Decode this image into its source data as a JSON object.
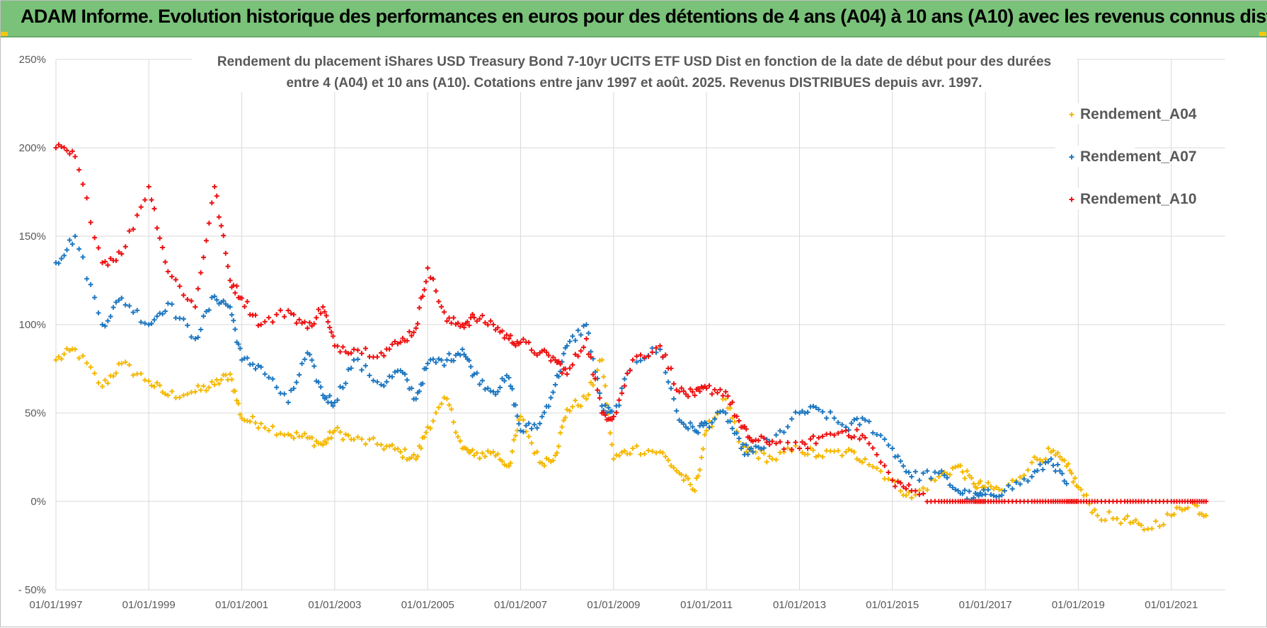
{
  "header": {
    "banner_title": "ADAM Informe. Evolution historique des performances en euros pour des détentions de 4 ans (A04) à 10 ans (A10) avec les revenus connus distribués"
  },
  "colors": {
    "banner_bg": "#7ac27a",
    "series_A04": "#f5b800",
    "series_A07": "#1f78c1",
    "series_A10": "#ee1111",
    "grid": "#d9d9d9",
    "axis_text": "#595959"
  },
  "chart_data": {
    "type": "scatter",
    "title_lines": [
      "Rendement du placement iShares USD Treasury Bond 7-10yr UCITS ETF USD Dist en fonction de la date de début pour des durées",
      "entre 4 (A04) et 10 ans (A10).  Cotations entre janv 1997 et août. 2025. Revenus DISTRIBUES depuis avr. 1997."
    ],
    "xlabel": "",
    "ylabel": "",
    "x_ticks": [
      "01/01/1997",
      "01/01/1999",
      "01/01/2001",
      "01/01/2003",
      "01/01/2005",
      "01/01/2007",
      "01/01/2009",
      "01/01/2011",
      "01/01/2013",
      "01/01/2015",
      "01/01/2017",
      "01/01/2019",
      "01/01/2021"
    ],
    "y_ticks": [
      "250%",
      "200%",
      "150%",
      "100%",
      "50%",
      "0%",
      "- 50%"
    ],
    "y_tick_values": [
      250,
      200,
      150,
      100,
      50,
      0,
      -50
    ],
    "xlim": [
      "1997-01-01",
      "2022-03-01"
    ],
    "ylim": [
      -50,
      250
    ],
    "y_unit": "%",
    "grid": true,
    "legend_position": "right",
    "series": [
      {
        "name": "Rendement_A04",
        "x": [
          "1997-01",
          "1997-06",
          "1998-01",
          "1998-06",
          "1999-01",
          "1999-06",
          "2000-01",
          "2000-06",
          "2000-10",
          "2001-01",
          "2001-06",
          "2002-01",
          "2002-06",
          "2002-10",
          "2003-01",
          "2003-06",
          "2004-01",
          "2004-06",
          "2004-10",
          "2005-01",
          "2005-06",
          "2005-10",
          "2006-01",
          "2006-06",
          "2006-10",
          "2007-01",
          "2007-06",
          "2007-10",
          "2008-01",
          "2008-06",
          "2008-10",
          "2009-01",
          "2009-06",
          "2010-01",
          "2010-06",
          "2010-10",
          "2011-01",
          "2011-06",
          "2011-10",
          "2012-01",
          "2012-06",
          "2013-01",
          "2013-06",
          "2014-01",
          "2014-06",
          "2015-01",
          "2015-06",
          "2016-01",
          "2016-06",
          "2016-10",
          "2017-01",
          "2017-06",
          "2018-01",
          "2018-06",
          "2018-10",
          "2019-01",
          "2019-06",
          "2020-01",
          "2020-06",
          "2021-01",
          "2021-06",
          "2021-10"
        ],
        "y": [
          80,
          86,
          65,
          78,
          68,
          60,
          62,
          66,
          72,
          47,
          44,
          38,
          36,
          32,
          40,
          35,
          32,
          28,
          24,
          42,
          58,
          30,
          26,
          28,
          20,
          48,
          22,
          26,
          52,
          58,
          80,
          24,
          30,
          28,
          16,
          6,
          40,
          58,
          30,
          28,
          24,
          30,
          26,
          28,
          24,
          12,
          2,
          14,
          20,
          10,
          8,
          6,
          22,
          28,
          20,
          8,
          -8,
          -10,
          -16,
          -8,
          0,
          -8
        ]
      },
      {
        "name": "Rendement_A07",
        "x": [
          "1997-01",
          "1997-06",
          "1998-01",
          "1998-06",
          "1999-01",
          "1999-06",
          "2000-01",
          "2000-06",
          "2000-10",
          "2001-01",
          "2001-06",
          "2002-01",
          "2002-06",
          "2002-10",
          "2003-01",
          "2003-06",
          "2004-01",
          "2004-06",
          "2004-10",
          "2005-01",
          "2005-06",
          "2005-10",
          "2006-01",
          "2006-06",
          "2006-10",
          "2007-01",
          "2007-06",
          "2007-10",
          "2008-01",
          "2008-06",
          "2008-10",
          "2009-01",
          "2009-06",
          "2010-01",
          "2010-06",
          "2010-10",
          "2011-01",
          "2011-06",
          "2011-10",
          "2012-01",
          "2012-06",
          "2013-01",
          "2013-06",
          "2014-01",
          "2014-06",
          "2015-01",
          "2015-06",
          "2016-01",
          "2016-06",
          "2016-10",
          "2017-01",
          "2017-06",
          "2018-01",
          "2018-06",
          "2018-10"
        ],
        "y": [
          135,
          150,
          100,
          115,
          100,
          112,
          92,
          116,
          110,
          80,
          76,
          56,
          84,
          60,
          56,
          80,
          66,
          74,
          58,
          78,
          80,
          86,
          72,
          62,
          70,
          40,
          44,
          66,
          88,
          100,
          54,
          48,
          80,
          86,
          46,
          40,
          44,
          50,
          30,
          28,
          34,
          50,
          52,
          42,
          46,
          30,
          14,
          16,
          6,
          2,
          4,
          6,
          14,
          24,
          10
        ]
      },
      {
        "name": "Rendement_A10",
        "x": [
          "1997-01",
          "1997-06",
          "1998-01",
          "1998-06",
          "1999-01",
          "1999-06",
          "2000-01",
          "2000-06",
          "2000-10",
          "2001-01",
          "2001-06",
          "2002-01",
          "2002-06",
          "2002-10",
          "2003-01",
          "2003-06",
          "2004-01",
          "2004-06",
          "2004-10",
          "2005-01",
          "2005-06",
          "2005-10",
          "2006-01",
          "2006-06",
          "2006-10",
          "2007-01",
          "2007-06",
          "2007-10",
          "2008-01",
          "2008-06",
          "2008-10",
          "2009-01",
          "2009-06",
          "2010-01",
          "2010-06",
          "2010-10",
          "2011-01",
          "2011-06",
          "2011-10",
          "2012-01",
          "2012-06",
          "2013-01",
          "2013-06",
          "2014-01",
          "2014-06",
          "2015-01",
          "2015-06",
          "2016-01",
          "2016-06",
          "2016-10",
          "2017-01",
          "2017-06",
          "2018-01",
          "2018-06",
          "2018-10",
          "2019-01",
          "2019-06",
          "2020-01",
          "2020-06",
          "2021-01",
          "2021-06",
          "2021-10"
        ],
        "y": [
          200,
          195,
          135,
          140,
          178,
          130,
          110,
          178,
          125,
          115,
          100,
          108,
          98,
          110,
          88,
          86,
          84,
          90,
          98,
          132,
          102,
          100,
          104,
          100,
          92,
          90,
          84,
          80,
          72,
          92,
          50,
          48,
          80,
          88,
          62,
          60,
          64,
          62,
          42,
          34,
          34,
          30,
          36,
          40,
          36,
          12,
          6,
          0,
          0,
          0,
          0,
          0,
          0,
          0,
          0,
          0,
          0,
          0,
          0,
          0,
          0,
          0
        ]
      }
    ]
  }
}
